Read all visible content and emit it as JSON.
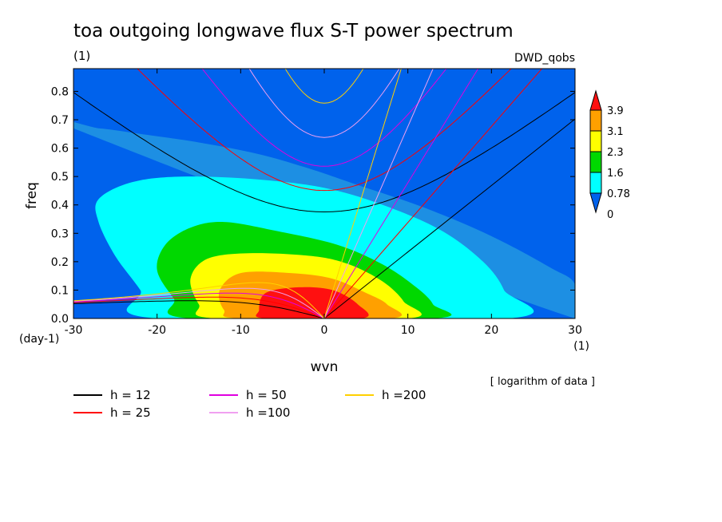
{
  "chart_data": {
    "type": "heatmap",
    "title": "toa outgoing longwave flux S-T power spectrum",
    "subtitle_unit": "(1)",
    "dataset_label": "DWD_qobs",
    "xlabel": "wvn",
    "ylabel": "freq",
    "x_unit": "(1)",
    "y_unit": "(day-1)",
    "note": "[ logarithm of data ]",
    "xlim": [
      -30,
      30
    ],
    "ylim": [
      0,
      0.88
    ],
    "x_ticks": [
      -30,
      -20,
      -10,
      0,
      10,
      20,
      30
    ],
    "x_tick_labels": [
      "-30",
      "-20",
      "-10",
      "0",
      "10",
      "20",
      "30"
    ],
    "y_ticks": [
      0,
      0.1,
      0.2,
      0.3,
      0.4,
      0.5,
      0.6,
      0.7,
      0.8
    ],
    "y_tick_labels": [
      "0.0",
      "0.1",
      "0.2",
      "0.3",
      "0.4",
      "0.5",
      "0.6",
      "0.7",
      "0.8"
    ],
    "contour_levels": [
      0,
      0.78,
      1.6,
      2.3,
      3.1,
      3.9
    ],
    "colorbar_labels": [
      "3.9",
      "3.1",
      "2.3",
      "1.6",
      "0.78",
      "0"
    ],
    "colorbar_colors": [
      "#0062ec",
      "#00ffff",
      "#00d800",
      "#ffff00",
      "#ffa000",
      "#ff1010"
    ],
    "background_color": "#0062ec",
    "filled_regions": [
      {
        "level": 0.0,
        "color": "#1d8fe3",
        "points": [
          [
            -30,
            0.67
          ],
          [
            -27,
            0.67
          ],
          [
            -22,
            0.65
          ],
          [
            -15,
            0.62
          ],
          [
            -8,
            0.58
          ],
          [
            -2,
            0.53
          ],
          [
            4,
            0.47
          ],
          [
            12,
            0.39
          ],
          [
            20,
            0.29
          ],
          [
            27,
            0.18
          ],
          [
            30,
            0.12
          ],
          [
            30,
            0
          ]
        ]
      },
      {
        "level": 0.78,
        "color": "#00ffff",
        "points": [
          [
            22,
            0
          ],
          [
            21.5,
            0.1
          ],
          [
            19,
            0.2
          ],
          [
            14,
            0.31
          ],
          [
            7,
            0.4
          ],
          [
            0,
            0.46
          ],
          [
            -8,
            0.49
          ],
          [
            -17,
            0.5
          ],
          [
            -23,
            0.48
          ],
          [
            -27,
            0.42
          ],
          [
            -27,
            0.34
          ],
          [
            -25,
            0.22
          ],
          [
            -22,
            0.1
          ],
          [
            -20,
            0
          ]
        ]
      },
      {
        "level": 1.6,
        "color": "#00d800",
        "points": [
          [
            13,
            0
          ],
          [
            13,
            0.05
          ],
          [
            11,
            0.11
          ],
          [
            7,
            0.19
          ],
          [
            1.5,
            0.26
          ],
          [
            -6,
            0.31
          ],
          [
            -12,
            0.34
          ],
          [
            -16,
            0.32
          ],
          [
            -19,
            0.26
          ],
          [
            -20,
            0.17
          ],
          [
            -18,
            0.07
          ],
          [
            -16,
            0
          ]
        ]
      },
      {
        "level": 2.3,
        "color": "#ffff00",
        "points": [
          [
            10,
            0
          ],
          [
            9.5,
            0.06
          ],
          [
            7,
            0.13
          ],
          [
            3,
            0.19
          ],
          [
            -1.5,
            0.22
          ],
          [
            -9,
            0.23
          ],
          [
            -14,
            0.21
          ],
          [
            -16,
            0.14
          ],
          [
            -15,
            0.05
          ],
          [
            -13,
            0
          ]
        ]
      },
      {
        "level": 3.1,
        "color": "#ffa000",
        "points": [
          [
            8,
            0
          ],
          [
            7.5,
            0.05
          ],
          [
            5,
            0.09
          ],
          [
            1,
            0.14
          ],
          [
            -4,
            0.16
          ],
          [
            -10,
            0.16
          ],
          [
            -12.5,
            0.1
          ],
          [
            -12,
            0.03
          ],
          [
            -10,
            0
          ]
        ]
      },
      {
        "level": 3.9,
        "color": "#ff1010",
        "points": [
          [
            4.5,
            0
          ],
          [
            4,
            0.05
          ],
          [
            1,
            0.1
          ],
          [
            -3,
            0.11
          ],
          [
            -7,
            0.09
          ],
          [
            -7.8,
            0.03
          ],
          [
            -7,
            0
          ]
        ]
      }
    ],
    "series": [
      {
        "name": "h = 12",
        "color": "#000000",
        "equivalent_depth": 12
      },
      {
        "name": "h = 25",
        "color": "#ff0000",
        "equivalent_depth": 25
      },
      {
        "name": "h = 50",
        "color": "#e000e0",
        "equivalent_depth": 50
      },
      {
        "name": "h =100",
        "color": "#f0a0f0",
        "equivalent_depth": 100
      },
      {
        "name": "h =200",
        "color": "#ffd000",
        "equivalent_depth": 200
      }
    ],
    "legend_placement": "bottom-left, three columns",
    "grid": false,
    "colorbar_placement": "right"
  }
}
